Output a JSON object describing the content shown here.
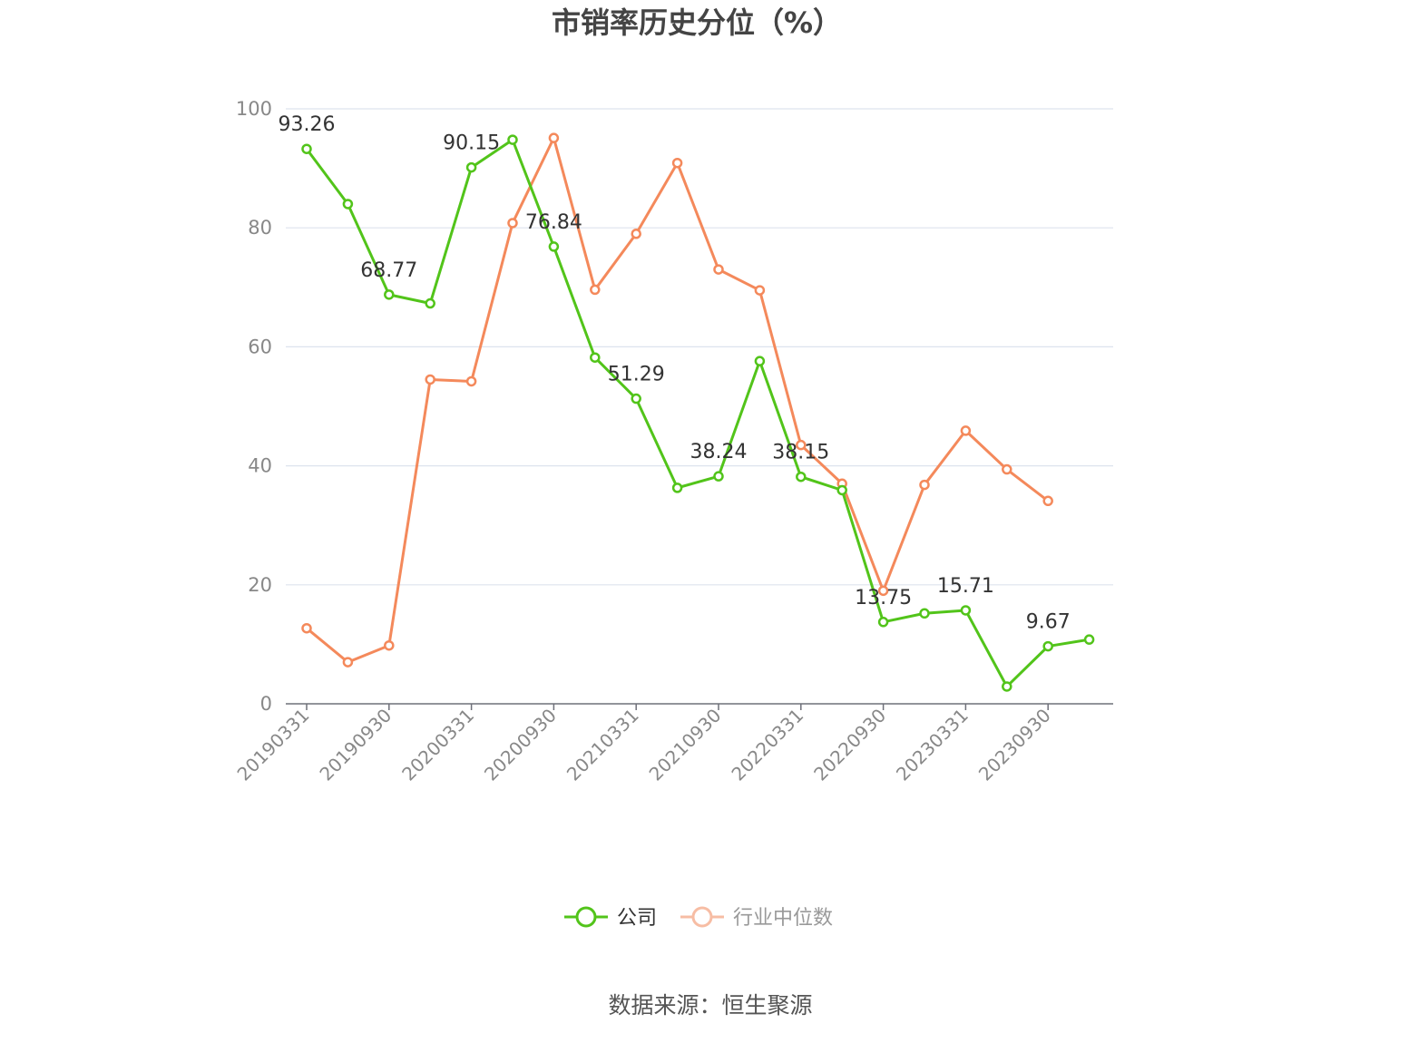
{
  "chart_data": {
    "type": "line",
    "title": "市销率历史分位（%）",
    "ylim": [
      0,
      100
    ],
    "yticks": [
      "0",
      "20",
      "40",
      "60",
      "80",
      "100"
    ],
    "grid": true,
    "legend_position": "bottom",
    "x": [
      "20190331",
      "20190630",
      "20190930",
      "20191231",
      "20200331",
      "20200630",
      "20200930",
      "20201231",
      "20210331",
      "20210630",
      "20210930",
      "20211231",
      "20220331",
      "20220630",
      "20220930",
      "20221231",
      "20230331",
      "20230630",
      "20230930",
      "20231231"
    ],
    "xtick_labels": [
      "20190331",
      "20190930",
      "20200331",
      "20200930",
      "20210331",
      "20210930",
      "20220331",
      "20220930",
      "20230331",
      "20230930"
    ],
    "series": [
      {
        "name": "公司",
        "color": "#52c41a",
        "values": [
          93.26,
          84.0,
          68.77,
          67.3,
          90.15,
          94.8,
          76.84,
          58.2,
          51.29,
          36.3,
          38.24,
          57.6,
          38.15,
          35.9,
          13.75,
          15.2,
          15.71,
          2.9,
          9.67,
          10.8
        ]
      },
      {
        "name": "行业中位数",
        "color": "#f4895b",
        "values": [
          12.7,
          7.0,
          9.8,
          54.5,
          54.2,
          80.8,
          95.1,
          69.6,
          79.0,
          90.9,
          73.0,
          69.5,
          43.5,
          37.0,
          19.0,
          36.8,
          45.9,
          39.4,
          34.1,
          null
        ]
      }
    ],
    "data_labels": [
      {
        "series": 0,
        "index": 0,
        "text": "93.26"
      },
      {
        "series": 0,
        "index": 2,
        "text": "68.77"
      },
      {
        "series": 0,
        "index": 4,
        "text": "90.15"
      },
      {
        "series": 0,
        "index": 6,
        "text": "76.84"
      },
      {
        "series": 0,
        "index": 8,
        "text": "51.29"
      },
      {
        "series": 0,
        "index": 10,
        "text": "38.24"
      },
      {
        "series": 0,
        "index": 12,
        "text": "38.15"
      },
      {
        "series": 0,
        "index": 14,
        "text": "13.75"
      },
      {
        "series": 0,
        "index": 16,
        "text": "15.71"
      },
      {
        "series": 0,
        "index": 18,
        "text": "9.67"
      }
    ]
  },
  "legend": {
    "company": "公司",
    "industry": "行业中位数",
    "company_color": "#52c41a",
    "industry_color": "#f4895b"
  },
  "source": "数据来源：恒生聚源"
}
